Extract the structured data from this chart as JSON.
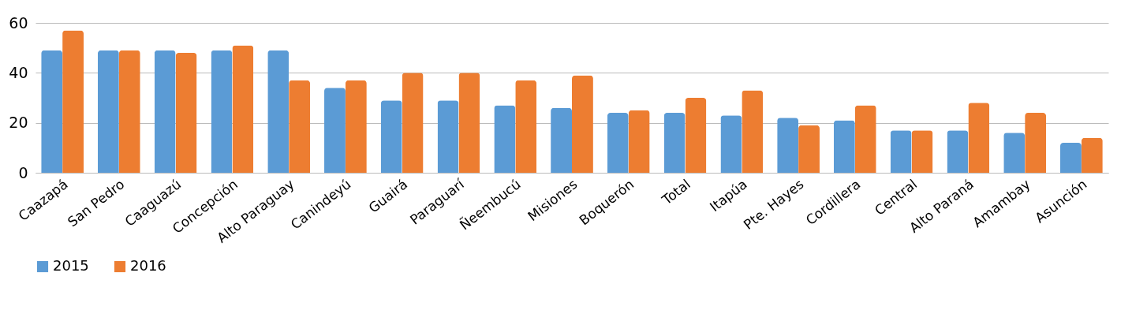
{
  "chart_data": {
    "type": "bar",
    "categories": [
      "Caazapá",
      "San Pedro",
      "Caaguazú",
      "Concepción",
      "Alto Paraguay",
      "Canindeyú",
      "Guairá",
      "Paraguarí",
      "Ñeembucú",
      "Misiones",
      "Boquerón",
      "Total",
      "Itapúa",
      "Pte. Hayes",
      "Cordillera",
      "Central",
      "Alto Paraná",
      "Amambay",
      "Asunción"
    ],
    "series": [
      {
        "name": "2015",
        "color": "#5b9bd5",
        "values": [
          49,
          49,
          49,
          49,
          49,
          34,
          29,
          29,
          27,
          26,
          24,
          24,
          23,
          22,
          21,
          17,
          17,
          16,
          12
        ]
      },
      {
        "name": "2016",
        "color": "#ed7d31",
        "values": [
          57,
          49,
          48,
          51,
          37,
          37,
          40,
          40,
          37,
          39,
          25,
          30,
          33,
          19,
          27,
          17,
          28,
          24,
          14
        ]
      }
    ],
    "ylim": [
      0,
      60
    ],
    "yticks": [
      0,
      20,
      40,
      60
    ],
    "grid": "y",
    "legend": "bottom"
  }
}
